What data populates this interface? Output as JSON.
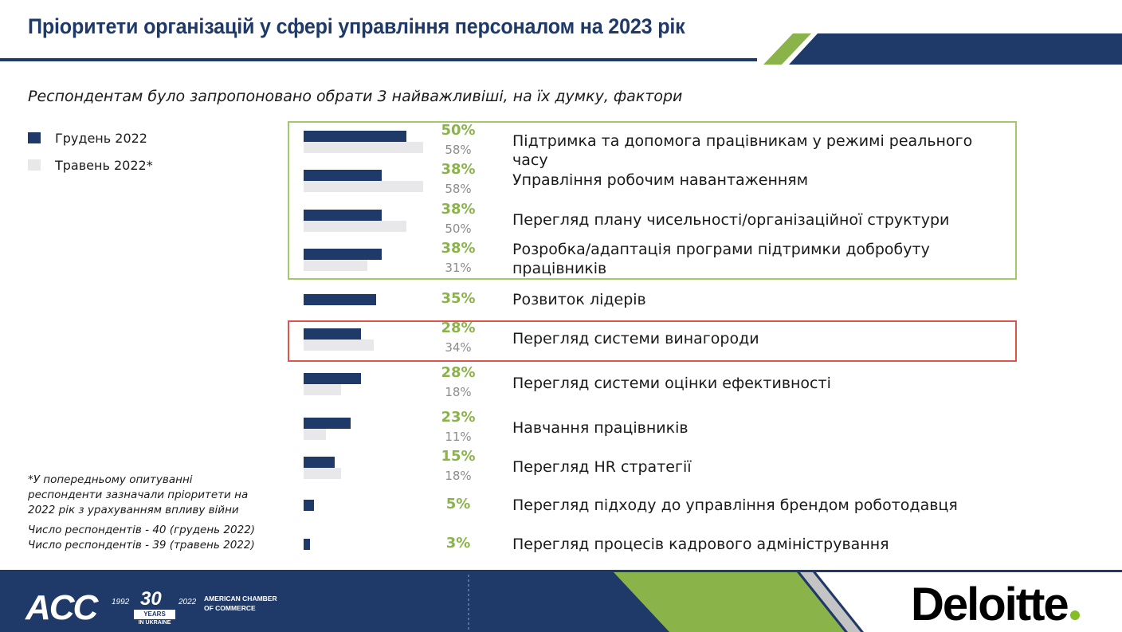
{
  "header": {
    "title": "Пріоритети організацій у сфері управління персоналом на 2023 рік"
  },
  "subtitle": "Респондентам було запропоновано обрати 3 найважливіші, на їх думку, фактори",
  "legend": {
    "items": [
      {
        "label": "Грудень 2022",
        "color": "#1f3a68"
      },
      {
        "label": "Травень 2022*",
        "color": "#e8e8ea"
      }
    ]
  },
  "colors": {
    "navy": "#1f3a68",
    "light_gray": "#e8e8ea",
    "green": "#8ab44a",
    "green_box": "#a4c96a",
    "red_box": "#e0534a"
  },
  "chart_data": {
    "type": "bar",
    "orientation": "horizontal",
    "value_unit": "%",
    "xlim": [
      0,
      58
    ],
    "series": [
      {
        "name": "Грудень 2022",
        "values": [
          50,
          38,
          38,
          38,
          35,
          28,
          28,
          23,
          15,
          5,
          3
        ]
      },
      {
        "name": "Травень 2022*",
        "values": [
          58,
          58,
          50,
          31,
          null,
          34,
          18,
          11,
          18,
          null,
          null
        ]
      }
    ],
    "categories": [
      "Підтримка та допомога працівникам у режимі реального часу",
      "Управління робочим навантаженням",
      "Перегляд плану чисельності/організаційної структури",
      "Розробка/адаптація програми підтримки добробуту працівників",
      "Розвиток лідерів",
      "Перегляд системи винагороди",
      "Перегляд системи оцінки ефективності",
      "Навчання працівників",
      "Перегляд HR стратегії",
      "Перегляд підходу до управління брендом роботодавця",
      "Перегляд процесів кадрового адміністрування"
    ],
    "dec_labels": [
      "50%",
      "38%",
      "38%",
      "38%",
      "35%",
      "28%",
      "28%",
      "23%",
      "15%",
      "5%",
      "3%"
    ],
    "may_labels": [
      "58%",
      "58%",
      "50%",
      "31%",
      "",
      "34%",
      "18%",
      "11%",
      "18%",
      "",
      ""
    ],
    "highlights": [
      {
        "rows": [
          0,
          3
        ],
        "color": "green"
      },
      {
        "rows": [
          5,
          5
        ],
        "color": "red"
      }
    ]
  },
  "notes": {
    "footnote": [
      "*У попередньому опитуванні",
      "респонденти зазначали пріоритети на",
      "2022 рік з урахуванням впливу війни"
    ],
    "respondents": [
      "Число респондентів - 40 (грудень 2022)",
      "Число респондентів - 39 (травень 2022)"
    ]
  },
  "footer": {
    "acc_logo": "ACC",
    "acc_year_start": "1992",
    "acc_year_end": "2022",
    "acc_anniversary": "30",
    "acc_years_word": "YEARS",
    "acc_in_ukraine": "IN UKRAINE",
    "acc_name_line1": "AMERICAN CHAMBER",
    "acc_name_line2": "OF COMMERCE",
    "deloitte": "Deloitte"
  }
}
